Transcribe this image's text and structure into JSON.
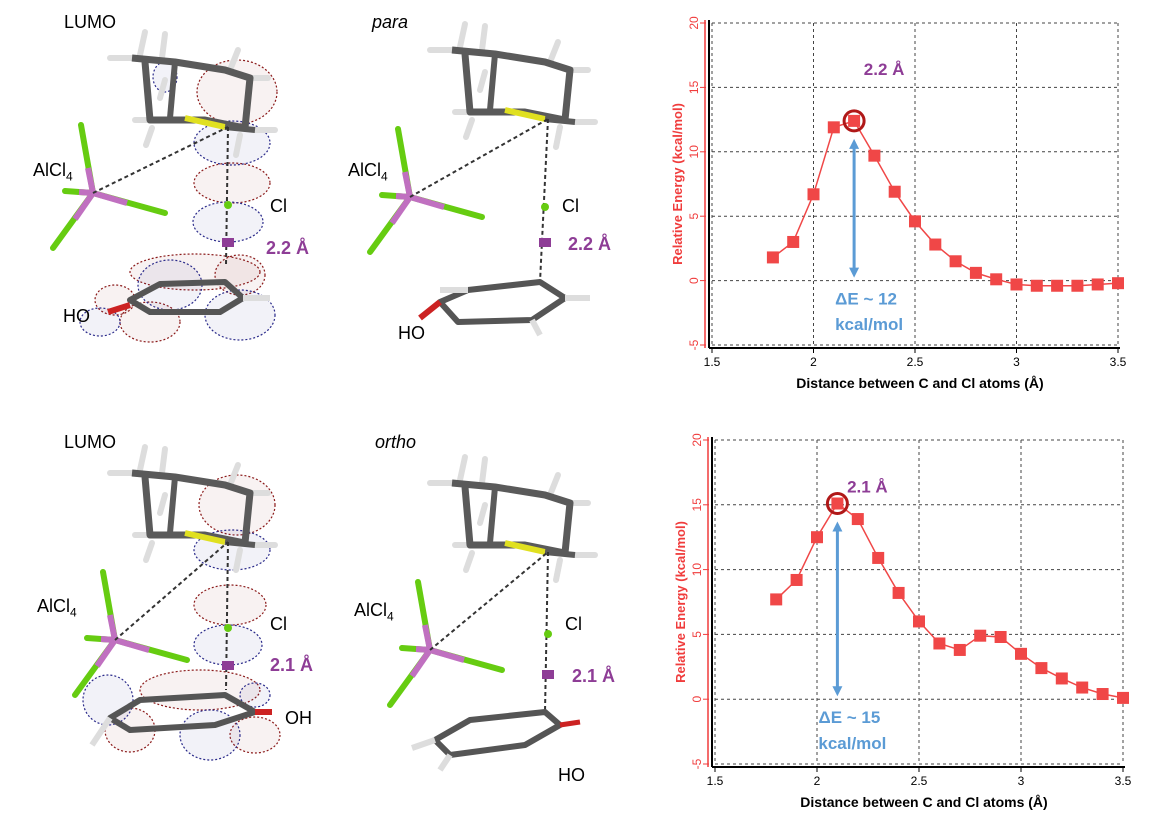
{
  "panels": [
    {
      "orbital_label": "LUMO",
      "isomer_label": "para",
      "counterion": "AlCl",
      "counterion_sub": "4",
      "chlorine": "Cl",
      "distance": "2.2 Å",
      "hydroxyl_left": "HO",
      "hydroxyl_right": "HO"
    },
    {
      "orbital_label": "LUMO",
      "isomer_label": "ortho",
      "counterion": "AlCl",
      "counterion_sub": "4",
      "chlorine": "Cl",
      "distance": "2.1 Å",
      "hydroxyl_left": "OH",
      "hydroxyl_right": "HO"
    }
  ],
  "colors": {
    "series": "#f04747",
    "axis_label": "#f03c3c",
    "peak_circle": "#b01818",
    "arrow": "#5b9bd5",
    "distance": "#8e3d96",
    "orbital_positive": "#8b1a1a",
    "orbital_negative": "#2a2a8a",
    "chlorine_atom": "#66cc11",
    "aluminum_atom": "#c070c0",
    "sulfur_bond": "#e0e020"
  },
  "chart_data": [
    {
      "type": "line",
      "xlabel": "Distance between C and Cl atoms (Å)",
      "ylabel": "Relative Energy (kcal/mol)",
      "xlim": [
        1.5,
        3.5
      ],
      "ylim": [
        -5,
        20
      ],
      "xticks": [
        "1.5",
        "2",
        "2.5",
        "3",
        "3.5"
      ],
      "yticks": [
        "-5",
        "0",
        "5",
        "10",
        "15",
        "20"
      ],
      "grid": true,
      "x": [
        1.8,
        1.9,
        2.0,
        2.1,
        2.2,
        2.3,
        2.4,
        2.5,
        2.6,
        2.7,
        2.8,
        2.9,
        3.0,
        3.1,
        3.2,
        3.3,
        3.4,
        3.5
      ],
      "y": [
        1.8,
        3.0,
        6.7,
        11.9,
        12.4,
        9.7,
        6.9,
        4.6,
        2.8,
        1.5,
        0.6,
        0.1,
        -0.3,
        -0.4,
        -0.4,
        -0.4,
        -0.3,
        -0.2
      ],
      "peak_x": 2.2,
      "peak_label": "2.2 Å",
      "barrier_label_1": "ΔE ~ 12",
      "barrier_label_2": "kcal/mol"
    },
    {
      "type": "line",
      "xlabel": "Distance between C and Cl atoms (Å)",
      "ylabel": "Relative Energy (kcal/mol)",
      "xlim": [
        1.5,
        3.5
      ],
      "ylim": [
        -5,
        20
      ],
      "xticks": [
        "1.5",
        "2",
        "2.5",
        "3",
        "3.5"
      ],
      "yticks": [
        "-5",
        "0",
        "5",
        "10",
        "15",
        "20"
      ],
      "grid": true,
      "x": [
        1.8,
        1.9,
        2.0,
        2.1,
        2.2,
        2.3,
        2.4,
        2.5,
        2.6,
        2.7,
        2.8,
        2.9,
        3.0,
        3.1,
        3.2,
        3.3,
        3.4,
        3.5
      ],
      "y": [
        7.7,
        9.2,
        12.5,
        15.1,
        13.9,
        10.9,
        8.2,
        6.0,
        4.3,
        3.8,
        4.9,
        4.8,
        3.5,
        2.4,
        1.6,
        0.9,
        0.4,
        0.1
      ],
      "peak_x": 2.1,
      "peak_label": "2.1 Å",
      "barrier_label_1": "ΔE ~ 15",
      "barrier_label_2": "kcal/mol"
    }
  ]
}
